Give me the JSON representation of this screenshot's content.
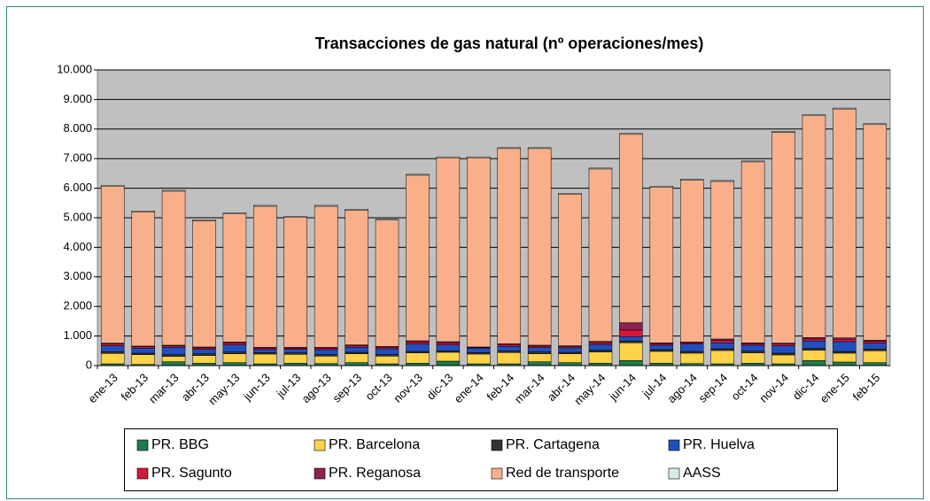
{
  "chart_data": {
    "type": "stacked-bar",
    "title": "Transacciones de gas natural (nº operaciones/mes)",
    "categories": [
      "ene-13",
      "feb-13",
      "mar-13",
      "abr-13",
      "may-13",
      "jun-13",
      "jul-13",
      "ago-13",
      "sep-13",
      "oct-13",
      "nov-13",
      "dic-13",
      "ene-14",
      "feb-14",
      "mar-14",
      "abr-14",
      "may-14",
      "jun-14",
      "jul-14",
      "ago-14",
      "sep-14",
      "oct-14",
      "nov-14",
      "dic-14",
      "ene-15",
      "feb-15"
    ],
    "series": [
      {
        "name": "PR. BBG",
        "color": "#1f7a4f",
        "values": [
          60,
          40,
          130,
          80,
          100,
          60,
          80,
          70,
          100,
          60,
          80,
          150,
          60,
          60,
          130,
          100,
          80,
          170,
          80,
          70,
          60,
          80,
          60,
          170,
          120,
          100
        ]
      },
      {
        "name": "PR. Barcelona",
        "color": "#ffd24a",
        "values": [
          350,
          330,
          180,
          260,
          300,
          330,
          300,
          250,
          300,
          260,
          350,
          300,
          330,
          380,
          270,
          300,
          380,
          600,
          400,
          350,
          450,
          350,
          300,
          350,
          300,
          400
        ]
      },
      {
        "name": "PR. Cartagena",
        "color": "#333333",
        "values": [
          60,
          50,
          60,
          60,
          60,
          50,
          50,
          50,
          50,
          50,
          50,
          50,
          50,
          60,
          60,
          50,
          60,
          60,
          60,
          60,
          60,
          60,
          60,
          60,
          60,
          60
        ]
      },
      {
        "name": "PR. Huelva",
        "color": "#1f4fbf",
        "values": [
          200,
          170,
          250,
          150,
          240,
          100,
          120,
          170,
          170,
          200,
          250,
          200,
          150,
          150,
          150,
          150,
          200,
          150,
          150,
          250,
          200,
          200,
          250,
          250,
          330,
          200
        ]
      },
      {
        "name": "PR. Sagunto",
        "color": "#d4183c",
        "values": [
          60,
          50,
          50,
          50,
          60,
          50,
          40,
          50,
          50,
          50,
          60,
          60,
          20,
          60,
          50,
          40,
          60,
          220,
          50,
          40,
          80,
          50,
          60,
          70,
          80,
          60
        ]
      },
      {
        "name": "PR. Reganosa",
        "color": "#8b2252",
        "values": [
          30,
          20,
          20,
          30,
          40,
          30,
          30,
          30,
          30,
          30,
          50,
          50,
          20,
          30,
          30,
          30,
          40,
          250,
          30,
          30,
          50,
          30,
          30,
          50,
          50,
          40
        ]
      },
      {
        "name": "Red de transporte",
        "color": "#f9b08a",
        "values": [
          5300,
          4540,
          5210,
          4270,
          4330,
          4770,
          4390,
          4770,
          4560,
          4270,
          5600,
          6220,
          6400,
          6600,
          6650,
          5130,
          5830,
          6370,
          5270,
          5470,
          5330,
          6120,
          7130,
          7500,
          7740,
          7290
        ]
      },
      {
        "name": "AASS",
        "color": "#d8ece6",
        "values": [
          40,
          30,
          30,
          30,
          30,
          30,
          30,
          30,
          30,
          30,
          30,
          30,
          30,
          30,
          30,
          30,
          30,
          30,
          30,
          30,
          30,
          30,
          30,
          30,
          30,
          30
        ]
      }
    ],
    "ylim": [
      0,
      10000
    ],
    "yticks": [
      0,
      {
        "value": 1000,
        "label": "1.000"
      },
      {
        "value": 2000,
        "label": "2.000"
      },
      {
        "value": 3000,
        "label": "3.000"
      },
      {
        "value": 4000,
        "label": "4.000"
      },
      {
        "value": 5000,
        "label": "5.000"
      },
      {
        "value": 6000,
        "label": "6.000"
      },
      {
        "value": 7000,
        "label": "7.000"
      },
      {
        "value": 8000,
        "label": "8.000"
      },
      {
        "value": 9000,
        "label": "9.000"
      },
      {
        "value": 10000,
        "label": "10.000"
      }
    ],
    "grid": true,
    "legend": "bottom"
  }
}
